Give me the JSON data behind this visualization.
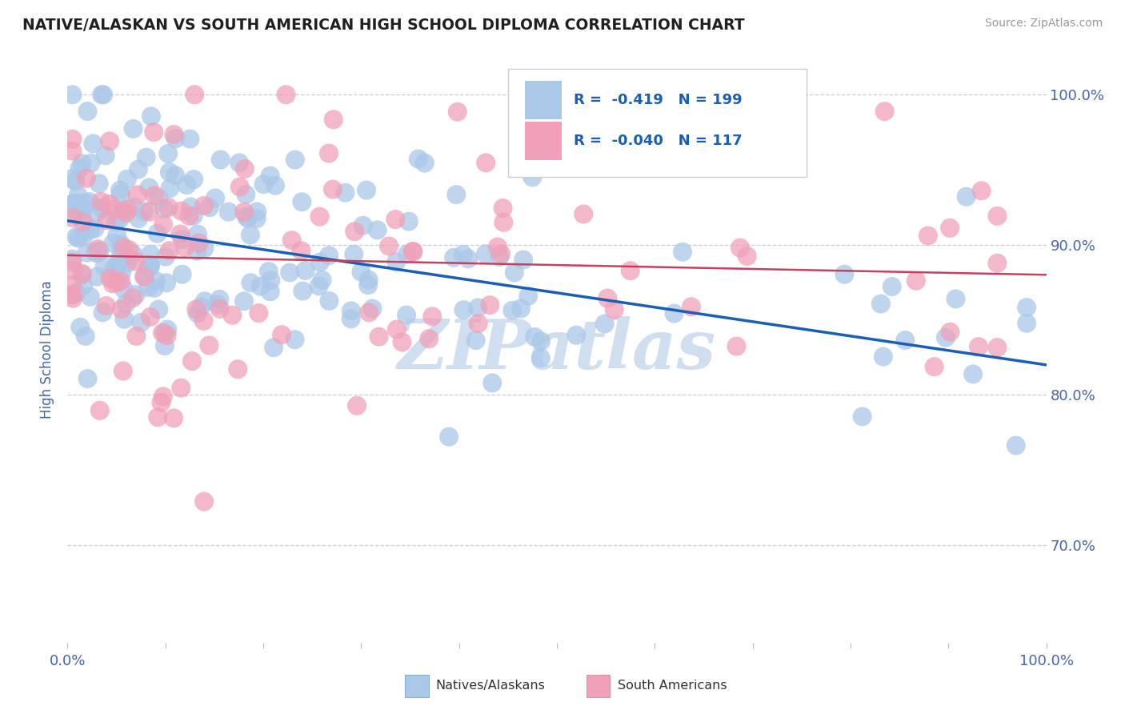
{
  "title": "NATIVE/ALASKAN VS SOUTH AMERICAN HIGH SCHOOL DIPLOMA CORRELATION CHART",
  "source_text": "Source: ZipAtlas.com",
  "ylabel": "High School Diploma",
  "xlim": [
    0.0,
    1.0
  ],
  "ylim": [
    0.635,
    1.025
  ],
  "yticks": [
    0.7,
    0.8,
    0.9,
    1.0
  ],
  "ytick_labels": [
    "70.0%",
    "80.0%",
    "90.0%",
    "100.0%"
  ],
  "legend_r_native": "-0.419",
  "legend_n_native": "199",
  "legend_r_south": "-0.040",
  "legend_n_south": "117",
  "native_color": "#aac8e8",
  "south_color": "#f0a0b8",
  "native_line_color": "#1a5fb4",
  "south_line_color": "#c84060",
  "watermark_color": "#d0dff0",
  "background_color": "#ffffff",
  "title_color": "#202020",
  "axis_label_color": "#4466aa",
  "grid_color": "#c8cfe0",
  "native_trend_x0": 0.0,
  "native_trend_y0": 0.916,
  "native_trend_x1": 1.0,
  "native_trend_y1": 0.82,
  "south_trend_x0": 0.0,
  "south_trend_y0": 0.893,
  "south_trend_x1": 1.0,
  "south_trend_y1": 0.88
}
